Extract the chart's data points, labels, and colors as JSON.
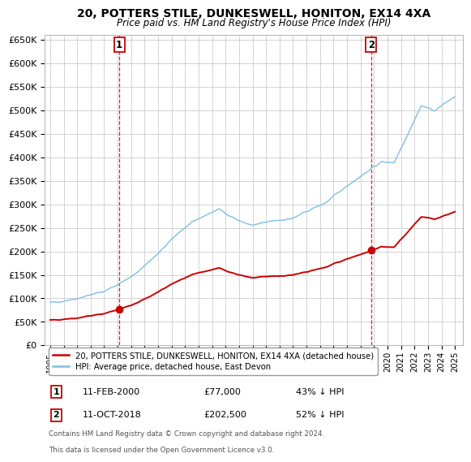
{
  "title": "20, POTTERS STILE, DUNKESWELL, HONITON, EX14 4XA",
  "subtitle": "Price paid vs. HM Land Registry's House Price Index (HPI)",
  "ylim": [
    0,
    650000
  ],
  "yticks": [
    0,
    50000,
    100000,
    150000,
    200000,
    250000,
    300000,
    350000,
    400000,
    450000,
    500000,
    550000,
    600000,
    650000
  ],
  "ytick_labels": [
    "£0",
    "£50K",
    "£100K",
    "£150K",
    "£200K",
    "£250K",
    "£300K",
    "£350K",
    "£400K",
    "£450K",
    "£500K",
    "£550K",
    "£600K",
    "£650K"
  ],
  "hpi_color": "#7fbfdf",
  "sale_color": "#cc0000",
  "marker1_date": 2000.12,
  "marker1_price": 77000,
  "marker2_date": 2018.79,
  "marker2_price": 202500,
  "legend_sale": "20, POTTERS STILE, DUNKESWELL, HONITON, EX14 4XA (detached house)",
  "legend_hpi": "HPI: Average price, detached house, East Devon",
  "ann1_label": "1",
  "ann1_date": "11-FEB-2000",
  "ann1_price": "£77,000",
  "ann1_pct": "43% ↓ HPI",
  "ann2_label": "2",
  "ann2_date": "11-OCT-2018",
  "ann2_price": "£202,500",
  "ann2_pct": "52% ↓ HPI",
  "footnote1": "Contains HM Land Registry data © Crown copyright and database right 2024.",
  "footnote2": "This data is licensed under the Open Government Licence v3.0.",
  "background_color": "#ffffff",
  "grid_color": "#cccccc",
  "xlim_min": 1994.6,
  "xlim_max": 2025.6
}
